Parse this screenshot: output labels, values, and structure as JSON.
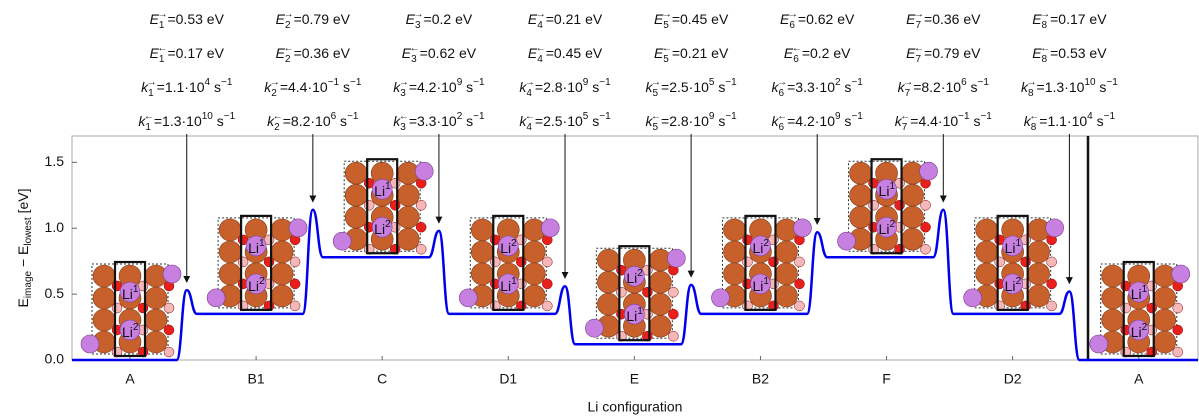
{
  "chart_data": {
    "type": "line",
    "categories": [
      "A",
      "B1",
      "C",
      "D1",
      "E",
      "B2",
      "F",
      "D2",
      "A"
    ],
    "x_label": "Li configuration",
    "y_label": [
      {
        "text": "E"
      },
      {
        "text": "image",
        "sub": true
      },
      {
        "text": " − E"
      },
      {
        "text": "lowest",
        "sub": true
      },
      {
        "text": " [eV]"
      }
    ],
    "xlim": [
      -0.46,
      8.47
    ],
    "ylim": [
      0,
      1.7
    ],
    "yticks": [
      {
        "value": 0,
        "label": "0.0"
      },
      {
        "value": 0.5,
        "label": "0.5"
      },
      {
        "value": 1,
        "label": "1.0"
      },
      {
        "value": 1.5,
        "label": "1.5"
      }
    ],
    "series": [
      {
        "color": "#0000ee",
        "x": [
          -0.46,
          0.37,
          0.45,
          0.53,
          1.37,
          1.45,
          1.53,
          2.37,
          2.45,
          2.53,
          3.37,
          3.45,
          3.53,
          4.37,
          4.45,
          4.53,
          5.37,
          5.45,
          5.53,
          6.37,
          6.45,
          6.53,
          7.37,
          7.45,
          7.53,
          8.47
        ],
        "values": [
          0,
          0,
          0.53,
          0.35,
          0.35,
          1.14,
          0.78,
          0.78,
          0.98,
          0.35,
          0.35,
          0.56,
          0.12,
          0.12,
          0.57,
          0.35,
          0.35,
          0.97,
          0.78,
          0.78,
          1.14,
          0.35,
          0.35,
          0.52,
          0,
          0
        ]
      }
    ],
    "site_label": "Li",
    "sites": [
      [
        "1",
        "2"
      ],
      [
        "1",
        "2"
      ],
      [
        "1",
        "2"
      ],
      [
        "2",
        "1"
      ],
      [
        "2",
        "1"
      ],
      [
        "2",
        "1"
      ],
      [
        "1",
        "2"
      ],
      [
        "1",
        "2"
      ],
      [
        "1",
        "2"
      ]
    ],
    "annotations": [
      [
        {
          "var": "E",
          "idx": "1",
          "dir": "→",
          "text": "=0.53 eV"
        },
        {
          "var": "E",
          "idx": "2",
          "dir": "→",
          "text": "=0.79 eV"
        },
        {
          "var": "E",
          "idx": "3",
          "dir": "→",
          "text": "=0.2 eV"
        },
        {
          "var": "E",
          "idx": "4",
          "dir": "→",
          "text": "=0.21 eV"
        },
        {
          "var": "E",
          "idx": "5",
          "dir": "→",
          "text": "=0.45 eV"
        },
        {
          "var": "E",
          "idx": "6",
          "dir": "→",
          "text": "=0.62 eV"
        },
        {
          "var": "E",
          "idx": "7",
          "dir": "→",
          "text": "=0.36 eV"
        },
        {
          "var": "E",
          "idx": "8",
          "dir": "→",
          "text": "=0.17 eV"
        }
      ],
      [
        {
          "var": "E",
          "idx": "1",
          "dir": "←",
          "text": "=0.17 eV"
        },
        {
          "var": "E",
          "idx": "2",
          "dir": "←",
          "text": "=0.36 eV"
        },
        {
          "var": "E",
          "idx": "3",
          "dir": "←",
          "text": "=0.62 eV"
        },
        {
          "var": "E",
          "idx": "4",
          "dir": "←",
          "text": "=0.45 eV"
        },
        {
          "var": "E",
          "idx": "5",
          "dir": "←",
          "text": "=0.21 eV"
        },
        {
          "var": "E",
          "idx": "6",
          "dir": "←",
          "text": "=0.2 eV"
        },
        {
          "var": "E",
          "idx": "7",
          "dir": "←",
          "text": "=0.79 eV"
        },
        {
          "var": "E",
          "idx": "8",
          "dir": "←",
          "text": "=0.53 eV"
        }
      ],
      [
        {
          "var": "k",
          "idx": "1",
          "dir": "→",
          "text": "=1.1·10",
          "exp": "4",
          "unit": " s",
          "uexp": "−1"
        },
        {
          "var": "k",
          "idx": "2",
          "dir": "→",
          "text": "=4.4·10",
          "exp": "−1",
          "unit": " s",
          "uexp": "−1"
        },
        {
          "var": "k",
          "idx": "3",
          "dir": "→",
          "text": "=4.2·10",
          "exp": "9",
          "unit": " s",
          "uexp": "−1"
        },
        {
          "var": "k",
          "idx": "4",
          "dir": "→",
          "text": "=2.8·10",
          "exp": "9",
          "unit": " s",
          "uexp": "−1"
        },
        {
          "var": "k",
          "idx": "5",
          "dir": "→",
          "text": "=2.5·10",
          "exp": "5",
          "unit": " s",
          "uexp": "−1"
        },
        {
          "var": "k",
          "idx": "6",
          "dir": "→",
          "text": "=3.3·10",
          "exp": "2",
          "unit": " s",
          "uexp": "−1"
        },
        {
          "var": "k",
          "idx": "7",
          "dir": "→",
          "text": "=8.2·10",
          "exp": "6",
          "unit": " s",
          "uexp": "−1"
        },
        {
          "var": "k",
          "idx": "8",
          "dir": "→",
          "text": "=1.3·10",
          "exp": "10",
          "unit": " s",
          "uexp": "−1"
        }
      ],
      [
        {
          "var": "k",
          "idx": "1",
          "dir": "←",
          "text": "=1.3·10",
          "exp": "10",
          "unit": " s",
          "uexp": "−1"
        },
        {
          "var": "k",
          "idx": "2",
          "dir": "←",
          "text": "=8.2·10",
          "exp": "6",
          "unit": " s",
          "uexp": "−1"
        },
        {
          "var": "k",
          "idx": "3",
          "dir": "←",
          "text": "=3.3·10",
          "exp": "2",
          "unit": " s",
          "uexp": "−1"
        },
        {
          "var": "k",
          "idx": "4",
          "dir": "←",
          "text": "=2.5·10",
          "exp": "5",
          "unit": " s",
          "uexp": "−1"
        },
        {
          "var": "k",
          "idx": "5",
          "dir": "←",
          "text": "=2.8·10",
          "exp": "9",
          "unit": " s",
          "uexp": "−1"
        },
        {
          "var": "k",
          "idx": "6",
          "dir": "←",
          "text": "=4.2·10",
          "exp": "9",
          "unit": " s",
          "uexp": "−1"
        },
        {
          "var": "k",
          "idx": "7",
          "dir": "←",
          "text": "=4.4·10",
          "exp": "−1",
          "unit": " s",
          "uexp": "−1"
        },
        {
          "var": "k",
          "idx": "8",
          "dir": "←",
          "text": "=1.1·10",
          "exp": "4",
          "unit": " s",
          "uexp": "−1"
        }
      ]
    ]
  }
}
